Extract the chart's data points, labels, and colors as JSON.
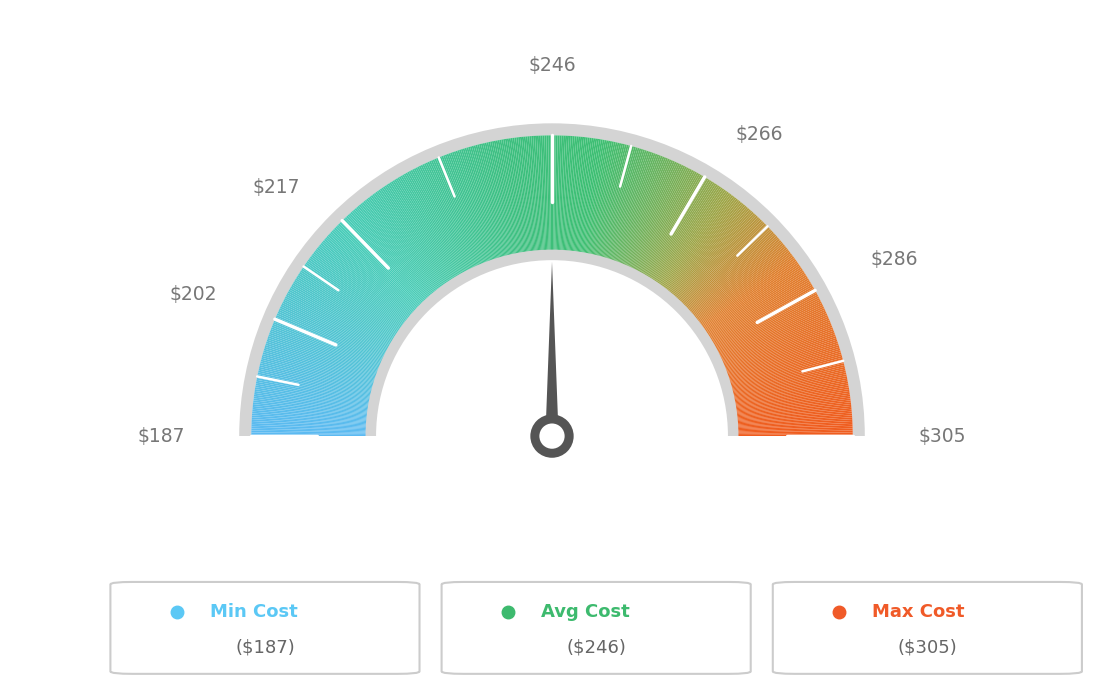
{
  "min_val": 187,
  "max_val": 305,
  "avg_val": 246,
  "needle_value": 246,
  "label_values": [
    187,
    202,
    217,
    246,
    266,
    286,
    305
  ],
  "label_texts": [
    "$187",
    "$202",
    "$217",
    "$246",
    "$266",
    "$286",
    "$305"
  ],
  "min_cost_label": "Min Cost",
  "avg_cost_label": "Avg Cost",
  "max_cost_label": "Max Cost",
  "min_cost_value": "($187)",
  "avg_cost_value": "($246)",
  "max_cost_value": "($305)",
  "min_color": "#5bc8f5",
  "avg_color": "#3dba6e",
  "max_color": "#f05a28",
  "needle_color": "#555555",
  "border_color": "#d4d4d4",
  "background_color": "#ffffff",
  "text_color": "#777777",
  "color_stops": [
    [
      0.0,
      [
        0.36,
        0.73,
        0.95
      ]
    ],
    [
      0.25,
      [
        0.28,
        0.8,
        0.72
      ]
    ],
    [
      0.45,
      [
        0.24,
        0.75,
        0.5
      ]
    ],
    [
      0.55,
      [
        0.24,
        0.75,
        0.45
      ]
    ],
    [
      0.7,
      [
        0.62,
        0.65,
        0.28
      ]
    ],
    [
      0.8,
      [
        0.88,
        0.5,
        0.18
      ]
    ],
    [
      1.0,
      [
        0.94,
        0.36,
        0.12
      ]
    ]
  ]
}
